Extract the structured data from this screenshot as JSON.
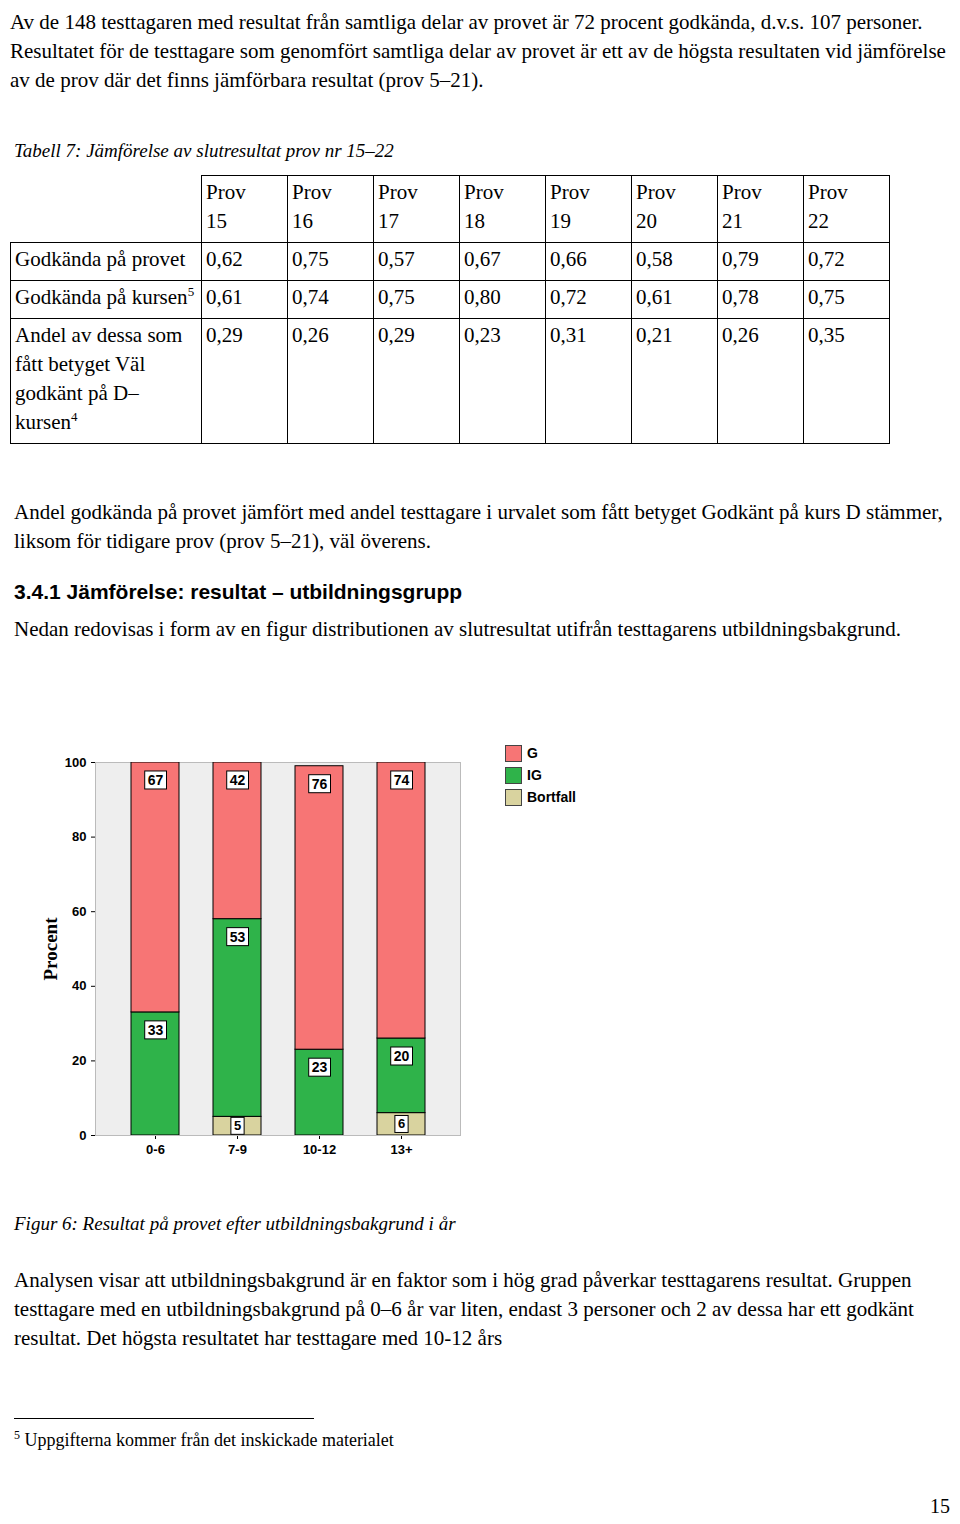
{
  "document": {
    "paragraph_top": "Av de 148 testtagaren med resultat från samtliga delar av provet är 72 procent godkända, d.v.s. 107 personer. Resultatet för de testtagare som genomfört samtliga delar av provet är ett av de högsta resultaten vid jämförelse av de prov där det finns jämförbara resultat (prov 5–21).",
    "table_caption": "Tabell 7: Jämförelse av slutresultat prov nr 15–22",
    "table": {
      "header": [
        "Prov 15",
        "Prov 16",
        "Prov 17",
        "Prov 18",
        "Prov 19",
        "Prov 20",
        "Prov 21",
        "Prov 22"
      ],
      "rows": [
        {
          "label": "Godkända på provet",
          "sup": null,
          "cells": [
            "0,62",
            "0,75",
            "0,57",
            "0,67",
            "0,66",
            "0,58",
            "0,79",
            "0,72"
          ]
        },
        {
          "label": "Godkända på kursen",
          "sup": "5",
          "cells": [
            "0,61",
            "0,74",
            "0,75",
            "0,80",
            "0,72",
            "0,61",
            "0,78",
            "0,75"
          ]
        },
        {
          "label": "Andel av dessa som fått betyget Väl godkänt på D–kursen",
          "sup": "4",
          "cells": [
            "0,29",
            "0,26",
            "0,29",
            "0,23",
            "0,31",
            "0,21",
            "0,26",
            "0,35"
          ]
        }
      ]
    },
    "paragraph_after_table": "Andel godkända på provet jämfört med andel testtagare i urvalet som fått betyget Godkänt på kurs D stämmer, liksom för tidigare prov (prov 5–21), väl överens.",
    "heading": "3.4.1 Jämförelse: resultat – utbildningsgrupp",
    "paragraph_before_figure": "Nedan redovisas i form av en figur distributionen av slutresultat utifrån testtagarens utbildningsbakgrund.",
    "figure_caption": "Figur 6: Resultat på provet efter utbildningsbakgrund i år",
    "paragraph_after_figure": "Analysen visar att utbildningsbakgrund är en faktor som i hög grad påverkar testtagarens resultat. Gruppen testtagare med en utbildningsbakgrund på 0–6 år var liten, endast 3 personer och 2 av dessa har ett godkänt resultat. Det högsta resultatet har testtagare med 10-12 års",
    "footnote": {
      "mark": "5",
      "text": "Uppgifterna kommer från det inskickade materialet"
    },
    "page_number": "15"
  },
  "chart_data": {
    "type": "bar",
    "stacked": true,
    "data_labels": true,
    "categories": [
      "0-6",
      "7-9",
      "10-12",
      "13+"
    ],
    "series": [
      {
        "name": "G",
        "color": "#f77575",
        "values": [
          67,
          42,
          76,
          74
        ]
      },
      {
        "name": "IG",
        "color": "#2fb34a",
        "values": [
          33,
          53,
          23,
          20
        ]
      },
      {
        "name": "Bortfall",
        "color": "#d9d39f",
        "values": [
          null,
          5,
          null,
          6
        ]
      }
    ],
    "y_label": "Procent",
    "ylim": [
      0,
      100
    ],
    "yticks": [
      0,
      20,
      40,
      60,
      80,
      100
    ],
    "legend": "top-right"
  }
}
